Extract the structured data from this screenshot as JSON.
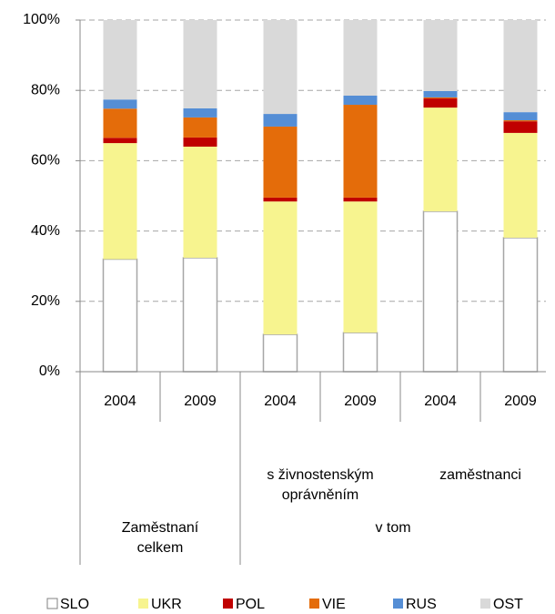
{
  "chart_data": {
    "type": "stacked_bar",
    "groups": [
      {
        "label": "Zaměstnaní celkem",
        "subgroups": [
          {
            "label": null,
            "categories": [
              "2004",
              "2009"
            ]
          }
        ]
      },
      {
        "label": "v tom",
        "subgroups": [
          {
            "label": "s živnostenským oprávněním",
            "categories": [
              "2004",
              "2009"
            ]
          },
          {
            "label": "zaměstnanci",
            "categories": [
              "2004",
              "2009"
            ]
          }
        ]
      }
    ],
    "series": [
      {
        "name": "SLO",
        "color": "#ffffff",
        "values": [
          32.0,
          32.4,
          10.6,
          11.1,
          45.6,
          38.1
        ]
      },
      {
        "name": "UKR",
        "color": "#f7f48f",
        "values": [
          33.0,
          31.6,
          37.8,
          37.3,
          29.5,
          29.8
        ]
      },
      {
        "name": "POL",
        "color": "#c00000",
        "values": [
          1.5,
          2.6,
          1.1,
          1.1,
          2.6,
          3.3
        ]
      },
      {
        "name": "VIE",
        "color": "#e46c0a",
        "values": [
          8.3,
          5.7,
          20.2,
          26.4,
          0.3,
          0.3
        ]
      },
      {
        "name": "RUS",
        "color": "#558ed5",
        "values": [
          2.6,
          2.6,
          3.6,
          2.6,
          1.8,
          2.3
        ]
      },
      {
        "name": "OST",
        "color": "#d9d9d9",
        "values": [
          22.6,
          25.1,
          26.7,
          21.5,
          20.2,
          26.2
        ]
      }
    ],
    "ylim": [
      0,
      100
    ],
    "yticks": [
      {
        "value": 0,
        "label": "0%"
      },
      {
        "value": 20,
        "label": "20%"
      },
      {
        "value": 40,
        "label": "40%"
      },
      {
        "value": 60,
        "label": "60%"
      },
      {
        "value": 80,
        "label": "80%"
      },
      {
        "value": 100,
        "label": "100%"
      }
    ],
    "grid": true
  }
}
